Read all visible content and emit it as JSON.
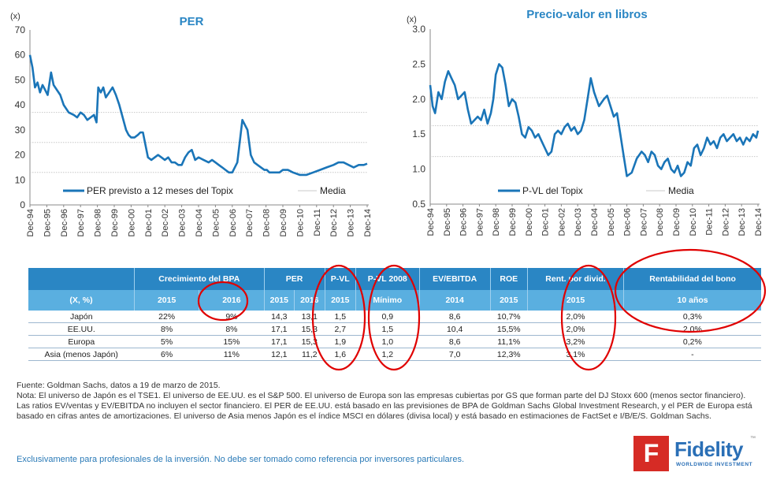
{
  "chart_data": [
    {
      "type": "line",
      "title": "PER",
      "ylabel": "(x)",
      "ylim": [
        0,
        70
      ],
      "yticks": [
        "0",
        "10",
        "20",
        "30",
        "40",
        "50",
        "60",
        "70"
      ],
      "mean_lines": [
        37,
        25,
        13
      ],
      "categories": [
        "Dec-94",
        "Dec-95",
        "Dec-96",
        "Dec-97",
        "Dec-98",
        "Dec-99",
        "Dec-00",
        "Dec-01",
        "Dec-02",
        "Dec-03",
        "Dec-04",
        "Dec-05",
        "Dec-06",
        "Dec-07",
        "Dec-08",
        "Dec-09",
        "Dec-10",
        "Dec-11",
        "Dec-12",
        "Dec-13",
        "Dec-14"
      ],
      "series": [
        {
          "name": "PER previsto a 12 meses del Topix",
          "x": [
            0,
            0.15,
            0.3,
            0.45,
            0.6,
            0.75,
            0.9,
            1.05,
            1.25,
            1.4,
            1.6,
            1.8,
            2.0,
            2.3,
            2.6,
            2.8,
            3.0,
            3.2,
            3.4,
            3.6,
            3.8,
            3.95,
            4.05,
            4.2,
            4.35,
            4.5,
            4.7,
            4.9,
            5.1,
            5.3,
            5.5,
            5.7,
            5.85,
            6.0,
            6.2,
            6.4,
            6.55,
            6.7,
            6.85,
            7.0,
            7.2,
            7.4,
            7.6,
            7.8,
            8.0,
            8.2,
            8.4,
            8.6,
            8.8,
            9.0,
            9.2,
            9.4,
            9.6,
            9.8,
            10.0,
            10.3,
            10.6,
            10.8,
            11.0,
            11.2,
            11.4,
            11.6,
            11.8,
            12.0,
            12.3,
            12.6,
            12.9,
            13.1,
            13.3,
            13.5,
            13.7,
            13.9,
            14.05,
            14.2,
            14.4,
            14.6,
            14.8,
            15.0,
            15.3,
            15.6,
            16.0,
            16.4,
            16.8,
            17.2,
            17.6,
            18.0,
            18.3,
            18.6,
            18.9,
            19.2,
            19.5,
            19.8,
            20.0
          ],
          "values": [
            60,
            55,
            47,
            49,
            45,
            48,
            46,
            44,
            53,
            48,
            46,
            44,
            40,
            37,
            36,
            35,
            37,
            36,
            34,
            35,
            36,
            33,
            47,
            45,
            47,
            43,
            45,
            47,
            44,
            40,
            35,
            30,
            28,
            27,
            27,
            28,
            29,
            29,
            24,
            19,
            18,
            19,
            20,
            19,
            18,
            19,
            17,
            17,
            16,
            16,
            19,
            21,
            22,
            18,
            19,
            18,
            17,
            18,
            17,
            16,
            15,
            14,
            13,
            13,
            17,
            34,
            30,
            20,
            17,
            16,
            15,
            14,
            14,
            13,
            13,
            13,
            13,
            14,
            14,
            13,
            12,
            12,
            13,
            14,
            15,
            16,
            17,
            17,
            16,
            15,
            16,
            16,
            16.5
          ]
        }
      ],
      "legend": [
        "PER previsto a 12 meses del Topix",
        "Media"
      ]
    },
    {
      "type": "line",
      "title": "Precio-valor en libros",
      "ylabel": "(x)",
      "ylim": [
        0.5,
        3.0
      ],
      "yticks": [
        "0.5",
        "1.0",
        "1.5",
        "2.0",
        "2.5",
        "3.0"
      ],
      "mean_lines": [
        2.02,
        1.62,
        1.18
      ],
      "categories": [
        "Dec-94",
        "Dec-95",
        "Dec-96",
        "Dec-97",
        "Dec-98",
        "Dec-99",
        "Dec-00",
        "Dec-01",
        "Dec-02",
        "Dec-03",
        "Dec-04",
        "Dec-05",
        "Dec-06",
        "Dec-07",
        "Dec-08",
        "Dec-09",
        "Dec-10",
        "Dec-11",
        "Dec-12",
        "Dec-13",
        "Dec-14"
      ],
      "series": [
        {
          "name": "P-VL del Topix",
          "x": [
            0,
            0.15,
            0.3,
            0.5,
            0.7,
            0.9,
            1.1,
            1.3,
            1.5,
            1.7,
            1.9,
            2.1,
            2.3,
            2.5,
            2.7,
            2.9,
            3.1,
            3.3,
            3.5,
            3.7,
            3.85,
            4.0,
            4.2,
            4.4,
            4.6,
            4.8,
            5.0,
            5.2,
            5.4,
            5.6,
            5.8,
            6.0,
            6.2,
            6.4,
            6.6,
            6.8,
            7.0,
            7.2,
            7.4,
            7.6,
            7.8,
            8.0,
            8.2,
            8.4,
            8.6,
            8.8,
            9.0,
            9.2,
            9.4,
            9.6,
            9.8,
            10.0,
            10.3,
            10.6,
            10.8,
            11.0,
            11.2,
            11.4,
            11.6,
            11.8,
            12.0,
            12.3,
            12.6,
            12.9,
            13.1,
            13.3,
            13.5,
            13.7,
            13.9,
            14.1,
            14.3,
            14.5,
            14.7,
            14.9,
            15.1,
            15.3,
            15.5,
            15.7,
            15.9,
            16.1,
            16.3,
            16.5,
            16.7,
            16.9,
            17.1,
            17.3,
            17.5,
            17.7,
            17.9,
            18.1,
            18.3,
            18.5,
            18.7,
            18.9,
            19.1,
            19.3,
            19.5,
            19.7,
            19.9,
            20.0
          ],
          "values": [
            2.2,
            1.9,
            1.8,
            2.1,
            2.0,
            2.25,
            2.4,
            2.3,
            2.2,
            2.0,
            2.05,
            2.1,
            1.85,
            1.65,
            1.7,
            1.75,
            1.7,
            1.85,
            1.65,
            1.8,
            2.0,
            2.35,
            2.5,
            2.45,
            2.2,
            1.9,
            2.0,
            1.95,
            1.75,
            1.5,
            1.45,
            1.6,
            1.55,
            1.45,
            1.5,
            1.4,
            1.3,
            1.2,
            1.25,
            1.5,
            1.55,
            1.5,
            1.6,
            1.65,
            1.55,
            1.6,
            1.5,
            1.55,
            1.7,
            2.0,
            2.3,
            2.1,
            1.9,
            2.0,
            2.05,
            1.9,
            1.75,
            1.8,
            1.5,
            1.2,
            0.9,
            0.95,
            1.15,
            1.25,
            1.2,
            1.1,
            1.25,
            1.2,
            1.05,
            1.0,
            1.1,
            1.15,
            1.0,
            0.95,
            1.05,
            0.9,
            0.95,
            1.1,
            1.05,
            1.3,
            1.35,
            1.2,
            1.3,
            1.45,
            1.35,
            1.4,
            1.3,
            1.45,
            1.5,
            1.4,
            1.45,
            1.5,
            1.4,
            1.45,
            1.35,
            1.45,
            1.4,
            1.5,
            1.45,
            1.55
          ]
        }
      ],
      "legend": [
        "P-VL del Topix",
        "Media"
      ]
    }
  ],
  "table": {
    "header_groups": [
      "",
      "Crecimiento del BPA",
      "PER",
      "P-VL",
      "P-VL 2008",
      "EV/EBITDA",
      "ROE",
      "Rent. por divid.",
      "Rentabilidad del bono"
    ],
    "subheaders": [
      "(X, %)",
      "2015",
      "2016",
      "2015",
      "2016",
      "2015",
      "Mínimo",
      "2014",
      "2015",
      "2015",
      "10 años"
    ],
    "rows": [
      [
        "Japón",
        "22%",
        "9%",
        "14,3",
        "13,1",
        "1,5",
        "0,9",
        "8,6",
        "10,7%",
        "2,0%",
        "0,3%"
      ],
      [
        "EE.UU.",
        "8%",
        "8%",
        "17,1",
        "15,3",
        "2,7",
        "1,5",
        "10,4",
        "15,5%",
        "2,0%",
        "2,0%"
      ],
      [
        "Europa",
        "5%",
        "15%",
        "17,1",
        "15,3",
        "1,9",
        "1,0",
        "8,6",
        "11,1%",
        "3,2%",
        "0,2%"
      ],
      [
        "Asia (menos Japón)",
        "6%",
        "11%",
        "12,1",
        "11,2",
        "1,6",
        "1,2",
        "7,0",
        "12,3%",
        "3,1%",
        "-"
      ]
    ]
  },
  "footnote": {
    "source": "Fuente: Goldman Sachs, datos a 19 de marzo de 2015.",
    "note": "Nota: El universo de Japón es el TSE1. El universo de EE.UU. es el S&P 500. El universo de Europa son las empresas cubiertas por GS que forman parte del DJ Stoxx 600 (menos sector financiero). Las ratios EV/ventas y EV/EBITDA no incluyen el sector financiero. El PER de EE.UU. está basado en las previsiones de BPA de Goldman Sachs Global Investment Research, y el PER de Europa está basado en cifras antes de amortizaciones. El universo de Asia menos Japón es el índice MSCI en dólares (divisa local) y está basado en estimaciones de FactSet e I/B/E/S. Goldman Sachs."
  },
  "disclaimer": "Exclusivamente para profesionales de la inversión. No debe ser tomado como referencia por inversores particulares.",
  "logo": {
    "mark": "F",
    "name": "Fidelity",
    "tm": "™",
    "subtitle": "WORLDWIDE INVESTMENT"
  },
  "colors": {
    "line": "#1a75b8",
    "title": "#2a86c4",
    "header_dark": "#2a86c4",
    "header_light": "#5aafe0",
    "mean": "#c8c8c8",
    "ellipse": "#e00000",
    "logo_red": "#d62b25",
    "logo_blue": "#2a6fb6"
  }
}
